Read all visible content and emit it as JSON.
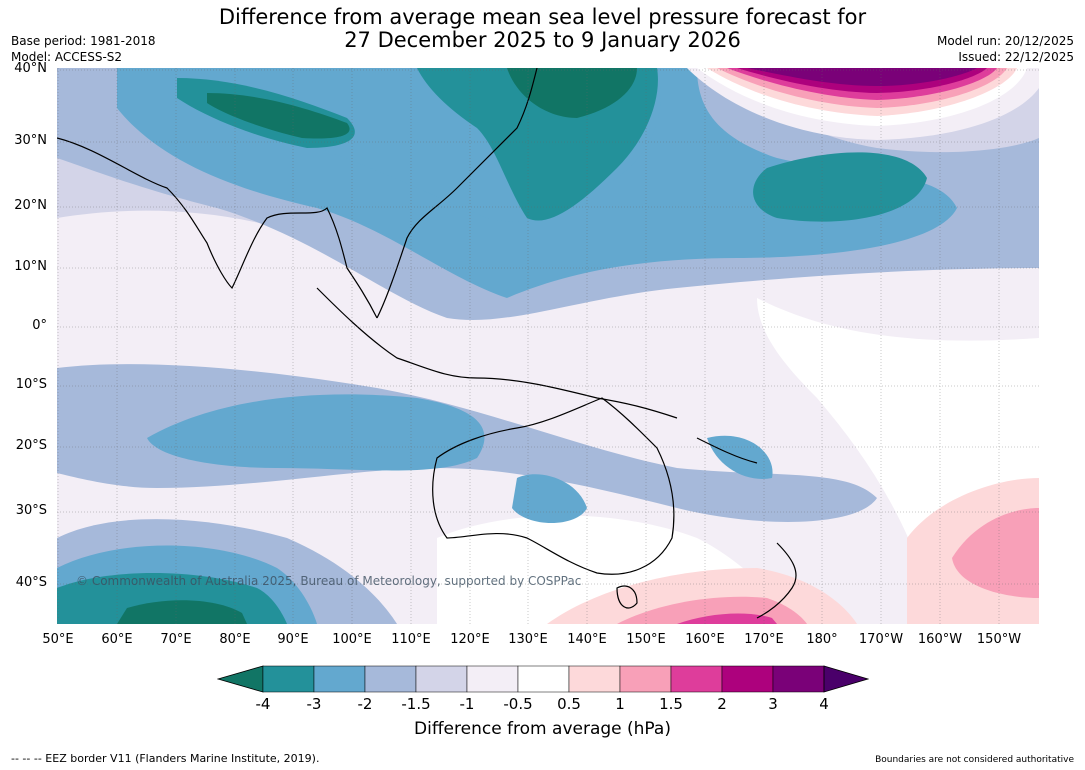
{
  "title": {
    "line1": "Difference from average mean sea level pressure forecast for",
    "line2": "27 December 2025 to 9 January 2026"
  },
  "meta": {
    "base_period": "Base period: 1981-2018",
    "model": "Model: ACCESS-S2",
    "model_run": "Model run: 20/12/2025",
    "issued": "Issued: 22/12/2025"
  },
  "axes": {
    "lat_labels": [
      "40°N",
      "30°N",
      "20°N",
      "10°N",
      "0°",
      "10°S",
      "20°S",
      "30°S",
      "40°S"
    ],
    "lon_labels": [
      "50°E",
      "60°E",
      "70°E",
      "80°E",
      "90°E",
      "100°E",
      "110°E",
      "120°E",
      "130°E",
      "140°E",
      "150°E",
      "160°E",
      "170°E",
      "180°",
      "170°W",
      "160°W",
      "150°W"
    ]
  },
  "colorbar": {
    "ticks": [
      "-4",
      "-3",
      "-2",
      "-1.5",
      "-1",
      "-0.5",
      "0.5",
      "1",
      "1.5",
      "2",
      "3",
      "4"
    ],
    "colors": [
      "#117565",
      "#23919a",
      "#63a8cf",
      "#a6b9da",
      "#d3d4e8",
      "#f3eef6",
      "#ffffff",
      "#fdd9da",
      "#f8a0b8",
      "#de3d9b",
      "#ad017d",
      "#7a0178",
      "#4a006a"
    ],
    "label": "Difference from average (hPa)"
  },
  "footer": {
    "eez_note": "--  --  -- EEZ border V11 (Flanders Marine Institute, 2019).",
    "boundaries_note": "Boundaries are not considered authoritative"
  },
  "copyright": "© Commonwealth of Australia 2025, Bureau of Meteorology, supported by COSPPac"
}
